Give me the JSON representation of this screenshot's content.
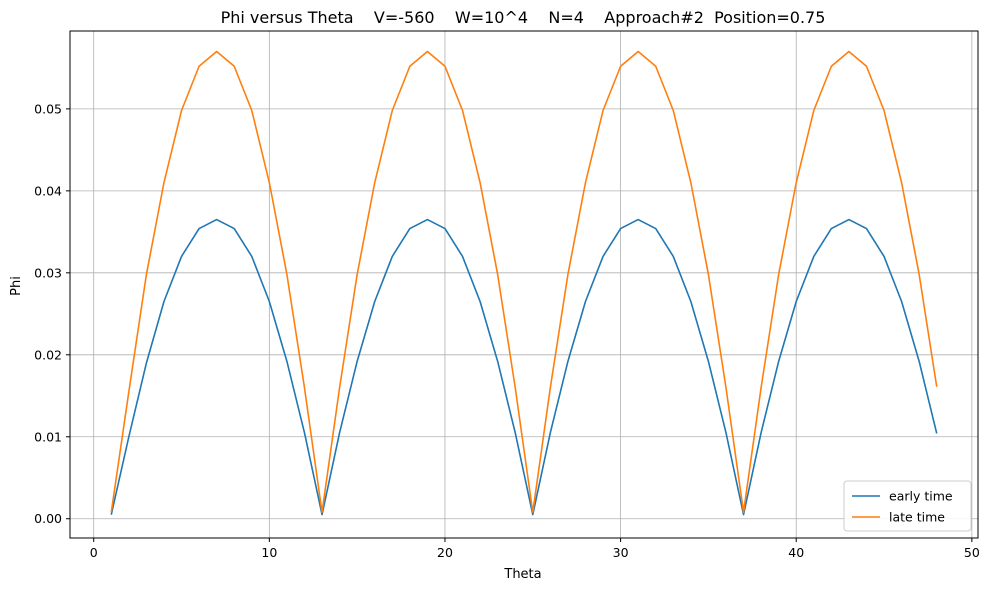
{
  "chart_data": {
    "type": "line",
    "title": "Phi versus Theta    V=-560    W=10^4    N=4    Approach#2  Position=0.75",
    "xlabel": "Theta",
    "ylabel": "Phi",
    "xlim": [
      -1.35,
      50.35
    ],
    "ylim": [
      -0.00235,
      0.0595
    ],
    "xticks": [
      0,
      10,
      20,
      30,
      40,
      50
    ],
    "yticks": [
      0.0,
      0.01,
      0.02,
      0.03,
      0.04,
      0.05
    ],
    "ytick_labels": [
      "0.00",
      "0.01",
      "0.02",
      "0.03",
      "0.04",
      "0.05"
    ],
    "grid": true,
    "legend_position": "lower right",
    "x": [
      1,
      2,
      3,
      4,
      5,
      6,
      7,
      8,
      9,
      10,
      11,
      12,
      13,
      14,
      15,
      16,
      17,
      18,
      19,
      20,
      21,
      22,
      23,
      24,
      25,
      26,
      27,
      28,
      29,
      30,
      31,
      32,
      33,
      34,
      35,
      36,
      37,
      38,
      39,
      40,
      41,
      42,
      43,
      44,
      45,
      46,
      47,
      48
    ],
    "series": [
      {
        "name": "early time",
        "color": "#1f77b4",
        "values": [
          0.0005,
          0.01,
          0.019,
          0.0265,
          0.032,
          0.0354,
          0.0365,
          0.0354,
          0.032,
          0.0265,
          0.0192,
          0.0105,
          0.0005,
          0.0105,
          0.0192,
          0.0265,
          0.032,
          0.0354,
          0.0365,
          0.0354,
          0.032,
          0.0265,
          0.0192,
          0.0105,
          0.0005,
          0.0105,
          0.0192,
          0.0265,
          0.032,
          0.0354,
          0.0365,
          0.0354,
          0.032,
          0.0265,
          0.0192,
          0.0105,
          0.0005,
          0.0105,
          0.0192,
          0.0265,
          0.032,
          0.0354,
          0.0365,
          0.0354,
          0.032,
          0.0265,
          0.0192,
          0.0104
        ]
      },
      {
        "name": "late time",
        "color": "#ff7f0e",
        "values": [
          0.0008,
          0.0155,
          0.0298,
          0.041,
          0.0498,
          0.0552,
          0.057,
          0.0552,
          0.0498,
          0.041,
          0.0298,
          0.016,
          0.0008,
          0.016,
          0.0298,
          0.041,
          0.0498,
          0.0552,
          0.057,
          0.0552,
          0.0498,
          0.041,
          0.0298,
          0.016,
          0.0008,
          0.016,
          0.0298,
          0.041,
          0.0498,
          0.0552,
          0.057,
          0.0552,
          0.0498,
          0.041,
          0.0298,
          0.016,
          0.0008,
          0.016,
          0.0298,
          0.041,
          0.0498,
          0.0552,
          0.057,
          0.0552,
          0.0498,
          0.041,
          0.0298,
          0.0161
        ]
      }
    ]
  }
}
